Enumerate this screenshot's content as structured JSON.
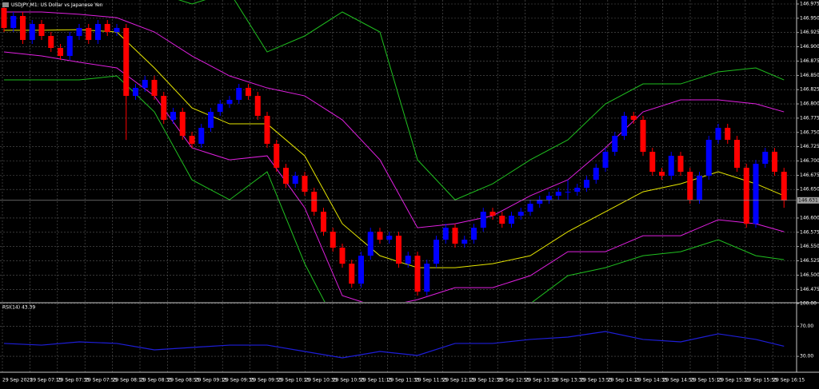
{
  "chart_data": [
    {
      "type": "candlestick",
      "title": "USDJPY,M1: US Dollar vs Japanese Yen",
      "up_color": "#0000ff",
      "down_color": "#ff0000",
      "candles": [
        [
          146.968,
          146.975,
          146.926,
          146.933
        ],
        [
          146.933,
          146.961,
          146.926,
          146.954
        ],
        [
          146.954,
          146.961,
          146.905,
          146.912
        ],
        [
          146.912,
          146.947,
          146.905,
          146.94
        ],
        [
          146.94,
          146.947,
          146.912,
          146.919
        ],
        [
          146.919,
          146.926,
          146.891,
          146.898
        ],
        [
          146.898,
          146.905,
          146.877,
          146.884
        ],
        [
          146.884,
          146.926,
          146.877,
          146.919
        ],
        [
          146.919,
          146.94,
          146.912,
          146.933
        ],
        [
          146.933,
          146.94,
          146.905,
          146.912
        ],
        [
          146.912,
          146.947,
          146.905,
          146.94
        ],
        [
          146.94,
          146.947,
          146.919,
          146.926
        ],
        [
          146.926,
          146.94,
          146.919,
          146.933
        ],
        [
          146.933,
          146.94,
          146.737,
          146.814
        ],
        [
          146.814,
          146.835,
          146.807,
          146.828
        ],
        [
          146.828,
          146.849,
          146.821,
          146.842
        ],
        [
          146.842,
          146.849,
          146.807,
          146.814
        ],
        [
          146.814,
          146.821,
          146.765,
          146.772
        ],
        [
          146.772,
          146.793,
          146.765,
          146.786
        ],
        [
          146.786,
          146.793,
          146.737,
          146.744
        ],
        [
          146.744,
          146.751,
          146.723,
          146.73
        ],
        [
          146.73,
          146.765,
          146.723,
          146.758
        ],
        [
          146.758,
          146.793,
          146.751,
          146.786
        ],
        [
          146.786,
          146.807,
          146.779,
          146.8
        ],
        [
          146.8,
          146.814,
          146.793,
          146.807
        ],
        [
          146.807,
          146.835,
          146.8,
          146.828
        ],
        [
          146.828,
          146.835,
          146.807,
          146.814
        ],
        [
          146.814,
          146.821,
          146.772,
          146.779
        ],
        [
          146.779,
          146.786,
          146.723,
          146.73
        ],
        [
          146.73,
          146.737,
          146.681,
          146.688
        ],
        [
          146.688,
          146.695,
          146.653,
          146.66
        ],
        [
          146.66,
          146.681,
          146.653,
          146.674
        ],
        [
          146.674,
          146.681,
          146.639,
          146.646
        ],
        [
          146.646,
          146.653,
          146.604,
          146.611
        ],
        [
          146.611,
          146.618,
          146.569,
          146.576
        ],
        [
          146.576,
          146.583,
          146.541,
          146.548
        ],
        [
          146.548,
          146.555,
          146.513,
          146.52
        ],
        [
          146.52,
          146.527,
          146.478,
          146.485
        ],
        [
          146.485,
          146.541,
          146.478,
          146.534
        ],
        [
          146.534,
          146.583,
          146.527,
          146.576
        ],
        [
          146.576,
          146.583,
          146.555,
          146.562
        ],
        [
          146.562,
          146.576,
          146.555,
          146.569
        ],
        [
          146.569,
          146.576,
          146.513,
          146.52
        ],
        [
          146.52,
          146.541,
          146.513,
          146.534
        ],
        [
          146.534,
          146.541,
          146.464,
          146.471
        ],
        [
          146.471,
          146.527,
          146.464,
          146.52
        ],
        [
          146.52,
          146.569,
          146.513,
          146.562
        ],
        [
          146.562,
          146.59,
          146.555,
          146.583
        ],
        [
          146.583,
          146.59,
          146.548,
          146.555
        ],
        [
          146.555,
          146.569,
          146.548,
          146.562
        ],
        [
          146.562,
          146.59,
          146.555,
          146.583
        ],
        [
          146.583,
          146.618,
          146.576,
          146.611
        ],
        [
          146.611,
          146.618,
          146.597,
          146.604
        ],
        [
          146.604,
          146.611,
          146.583,
          146.59
        ],
        [
          146.59,
          146.611,
          146.583,
          146.604
        ],
        [
          146.604,
          146.618,
          146.597,
          146.611
        ],
        [
          146.611,
          146.632,
          146.604,
          146.625
        ],
        [
          146.625,
          146.639,
          146.618,
          146.632
        ],
        [
          146.632,
          146.646,
          146.625,
          146.639
        ],
        [
          146.639,
          146.653,
          146.632,
          146.646
        ],
        [
          146.646,
          146.667,
          146.632,
          146.646
        ],
        [
          146.646,
          146.66,
          146.639,
          146.653
        ],
        [
          146.653,
          146.674,
          146.646,
          146.667
        ],
        [
          146.667,
          146.695,
          146.66,
          146.688
        ],
        [
          146.688,
          146.723,
          146.681,
          146.716
        ],
        [
          146.716,
          146.751,
          146.709,
          146.744
        ],
        [
          146.744,
          146.786,
          146.737,
          146.779
        ],
        [
          146.779,
          146.786,
          146.765,
          146.772
        ],
        [
          146.772,
          146.779,
          146.709,
          146.716
        ],
        [
          146.716,
          146.723,
          146.674,
          146.681
        ],
        [
          146.681,
          146.688,
          146.667,
          146.674
        ],
        [
          146.674,
          146.716,
          146.667,
          146.709
        ],
        [
          146.709,
          146.716,
          146.674,
          146.681
        ],
        [
          146.681,
          146.688,
          146.625,
          146.632
        ],
        [
          146.632,
          146.681,
          146.625,
          146.674
        ],
        [
          146.674,
          146.744,
          146.667,
          146.737
        ],
        [
          146.737,
          146.765,
          146.73,
          146.758
        ],
        [
          146.758,
          146.765,
          146.73,
          146.737
        ],
        [
          146.737,
          146.744,
          146.681,
          146.688
        ],
        [
          146.688,
          146.695,
          146.583,
          146.59
        ],
        [
          146.59,
          146.702,
          146.583,
          146.695
        ],
        [
          146.695,
          146.723,
          146.688,
          146.716
        ],
        [
          146.716,
          146.723,
          146.674,
          146.681
        ],
        [
          146.681,
          146.688,
          146.618,
          146.631
        ]
      ],
      "overlays": {
        "x": [
          0,
          4,
          8,
          12,
          16,
          20,
          24,
          28,
          32,
          36,
          40,
          44,
          48,
          52,
          56,
          60,
          64,
          68,
          72,
          76,
          80,
          83
        ],
        "series": [
          {
            "color": "#20c020",
            "values": [
              147.01,
              147.01,
              147.003,
              146.989,
              146.996,
              146.975,
              146.996,
              146.891,
              146.919,
              146.961,
              146.926,
              146.702,
              146.632,
              146.66,
              146.702,
              146.737,
              146.8,
              146.835,
              146.835,
              146.856,
              146.863,
              146.842
            ]
          },
          {
            "color": "#e020e0",
            "values": [
              146.961,
              146.961,
              146.957,
              146.951,
              146.926,
              146.884,
              146.849,
              146.828,
              146.814,
              146.772,
              146.702,
              146.583,
              146.59,
              146.604,
              146.639,
              146.667,
              146.723,
              146.786,
              146.807,
              146.807,
              146.8,
              146.786
            ]
          },
          {
            "color": "#e6e600",
            "values": [
              146.929,
              146.929,
              146.93,
              146.926,
              146.863,
              146.793,
              146.765,
              146.765,
              146.709,
              146.59,
              146.534,
              146.513,
              146.513,
              146.52,
              146.534,
              146.576,
              146.611,
              146.646,
              146.66,
              146.681,
              146.66,
              146.639
            ]
          },
          {
            "color": "#e020e0",
            "values": [
              146.891,
              146.884,
              146.873,
              146.863,
              146.814,
              146.723,
              146.702,
              146.709,
              146.618,
              146.464,
              146.443,
              146.457,
              146.478,
              146.478,
              146.499,
              146.541,
              146.541,
              146.569,
              146.569,
              146.597,
              146.59,
              146.576
            ]
          },
          {
            "color": "#20c020",
            "values": [
              146.842,
              146.842,
              146.842,
              146.849,
              146.786,
              146.667,
              146.632,
              146.681,
              146.52,
              146.394,
              146.38,
              146.422,
              146.429,
              146.443,
              146.45,
              146.499,
              146.513,
              146.534,
              146.541,
              146.562,
              146.534,
              146.527
            ]
          }
        ]
      },
      "last_price": {
        "value": 146.631,
        "label": "146.631"
      },
      "ylim": [
        146.453,
        146.982
      ],
      "yticks": [
        146.975,
        {
          "value": 146.95,
          "label": "146.950"
        },
        146.925,
        {
          "value": 146.9,
          "label": "146.900"
        },
        146.875,
        {
          "value": 146.85,
          "label": "146.850"
        },
        146.825,
        {
          "value": 146.8,
          "label": "146.800"
        },
        146.775,
        {
          "value": 146.75,
          "label": "146.750"
        },
        146.725,
        {
          "value": 146.7,
          "label": "146.700"
        },
        146.675,
        {
          "value": 146.65,
          "label": "146.650"
        },
        {
          "value": 146.6,
          "label": "146.600"
        },
        146.575,
        {
          "value": 146.55,
          "label": "146.550"
        },
        146.525,
        {
          "value": 146.5,
          "label": "146.500"
        },
        146.475
      ],
      "grid": true,
      "xtick_labels": [
        "29 Sep 2025",
        "29 Sep 07:15",
        "29 Sep 07:35",
        "29 Sep 07:55",
        "29 Sep 08:15",
        "29 Sep 08:35",
        "29 Sep 08:55",
        "29 Sep 09:15",
        "29 Sep 09:35",
        "29 Sep 09:55",
        "29 Sep 10:15",
        "29 Sep 10:35",
        "29 Sep 10:55",
        "29 Sep 11:15",
        "29 Sep 11:35",
        "29 Sep 11:55",
        "29 Sep 12:15",
        "29 Sep 12:35",
        "29 Sep 12:55",
        "29 Sep 13:15",
        "29 Sep 13:35",
        "29 Sep 13:55",
        "29 Sep 14:15",
        "29 Sep 14:35",
        "29 Sep 14:55",
        "29 Sep 15:15",
        "29 Sep 15:35",
        "29 Sep 15:55",
        "29 Sep 16:15"
      ]
    },
    {
      "type": "line",
      "title": "RSI(14) 43.39",
      "color": "#1e1ed8",
      "x": [
        0,
        4,
        8,
        12,
        16,
        20,
        24,
        28,
        32,
        36,
        40,
        44,
        48,
        52,
        56,
        60,
        64,
        68,
        72,
        76,
        80,
        83
      ],
      "values": [
        47.1,
        44.9,
        49.2,
        47.1,
        38.6,
        41.8,
        44.9,
        44.9,
        36.5,
        28.0,
        36.5,
        31.2,
        47.1,
        47.1,
        52.4,
        55.5,
        62.9,
        52.4,
        49.2,
        59.8,
        52.4,
        43.4
      ],
      "ylim": [
        10,
        100
      ],
      "yticks": [
        {
          "value": 100,
          "label": "100.00"
        },
        {
          "value": 70,
          "label": "70.00"
        },
        {
          "value": 30,
          "label": "30.00"
        }
      ],
      "grid": true
    }
  ]
}
